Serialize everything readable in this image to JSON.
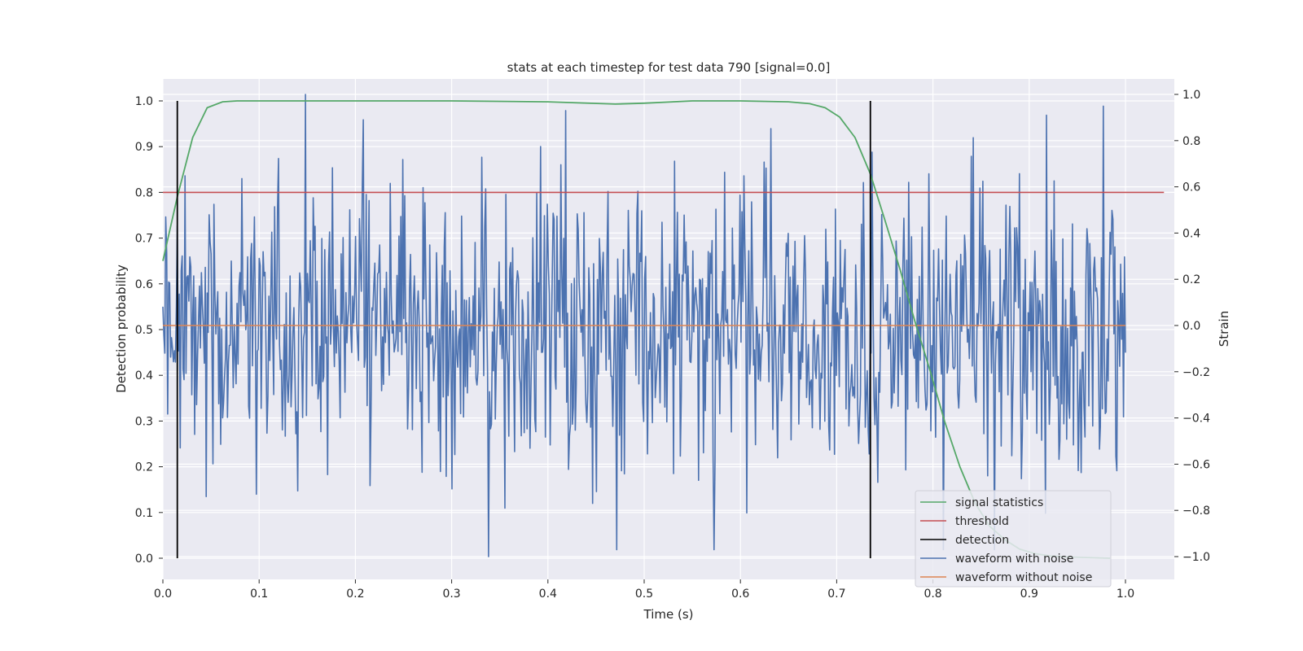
{
  "chart_data": {
    "type": "line",
    "title": "stats at each timestep for test data 790 [signal=0.0]",
    "xlabel": "Time (s)",
    "ylabel_left": "Detection probability",
    "ylabel_right": "Strain",
    "xlim": [
      0.0,
      1.05
    ],
    "ylim_left": [
      -0.05,
      1.05
    ],
    "ylim_right": [
      -1.1,
      1.1
    ],
    "x_ticks": [
      "0.0",
      "0.1",
      "0.2",
      "0.3",
      "0.4",
      "0.5",
      "0.6",
      "0.7",
      "0.8",
      "0.9",
      "1.0"
    ],
    "y_ticks_left": [
      "0.0",
      "0.1",
      "0.2",
      "0.3",
      "0.4",
      "0.5",
      "0.6",
      "0.7",
      "0.8",
      "0.9",
      "1.0"
    ],
    "y_ticks_right": [
      "−1.0",
      "−0.8",
      "−0.6",
      "−0.4",
      "−0.2",
      "0.0",
      "0.2",
      "0.4",
      "0.6",
      "0.8",
      "1.0"
    ],
    "grid": true,
    "legend_position": "lower-right",
    "colors": {
      "signal_statistics": "#55a868",
      "threshold": "#c44e52",
      "detection": "#000000",
      "waveform_with_noise": "#4c72b0",
      "waveform_without_noise": "#dd8452",
      "plot_background": "#eaeaf2",
      "grid": "#ffffff"
    },
    "series": [
      {
        "name": "signal statistics",
        "axis": "left",
        "x": [
          0.0,
          0.015,
          0.031,
          0.046,
          0.062,
          0.077,
          0.093,
          0.2,
          0.3,
          0.4,
          0.47,
          0.5,
          0.55,
          0.6,
          0.65,
          0.672,
          0.688,
          0.703,
          0.719,
          0.735,
          0.75,
          0.766,
          0.781,
          0.797,
          0.812,
          0.828,
          0.844,
          0.859,
          0.875,
          0.89,
          0.906,
          0.922,
          0.937,
          0.953,
          0.968,
          0.984
        ],
        "y": [
          0.65,
          0.79,
          0.92,
          0.985,
          0.998,
          1.0,
          1.0,
          1.0,
          1.0,
          0.998,
          0.993,
          0.995,
          1.0,
          1.0,
          0.998,
          0.994,
          0.985,
          0.965,
          0.92,
          0.84,
          0.74,
          0.63,
          0.52,
          0.41,
          0.3,
          0.2,
          0.12,
          0.07,
          0.04,
          0.02,
          0.01,
          0.005,
          0.003,
          0.002,
          0.001,
          0.0
        ]
      },
      {
        "name": "threshold",
        "axis": "left",
        "x": [
          0.0,
          1.04
        ],
        "y": [
          0.8,
          0.8
        ]
      },
      {
        "name": "detection",
        "axis": "left",
        "events": [
          0.015,
          0.735
        ],
        "y_range": [
          0.0,
          1.0
        ]
      },
      {
        "name": "waveform with noise",
        "axis": "right",
        "x_range": [
          0.0,
          1.0
        ],
        "n_points": 1000,
        "y_range_observed": [
          -1.0,
          1.0
        ],
        "peaks": [
          {
            "x": 0.148,
            "y": 1.0
          },
          {
            "x": 0.208,
            "y": 0.89
          },
          {
            "x": 0.338,
            "y": -1.0
          },
          {
            "x": 0.418,
            "y": 0.93
          },
          {
            "x": 0.462,
            "y": 0.58
          },
          {
            "x": 0.918,
            "y": 0.91
          },
          {
            "x": 0.045,
            "y": -0.74
          },
          {
            "x": 0.355,
            "y": -0.79
          }
        ]
      },
      {
        "name": "waveform without noise",
        "axis": "right",
        "x": [
          0.0,
          1.0
        ],
        "y": [
          0.0,
          0.0
        ]
      }
    ]
  }
}
